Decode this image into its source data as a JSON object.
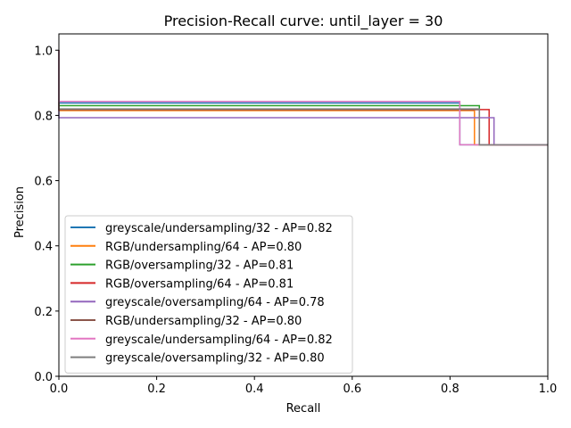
{
  "chart_data": {
    "type": "line",
    "title": "Precision-Recall curve: until_layer = 30",
    "xlabel": "Recall",
    "ylabel": "Precision",
    "xlim": [
      0.0,
      1.0
    ],
    "ylim": [
      0.0,
      1.05
    ],
    "xticks": [
      0.0,
      0.2,
      0.4,
      0.6,
      0.8,
      1.0
    ],
    "xtick_labels": [
      "0.0",
      "0.2",
      "0.4",
      "0.6",
      "0.8",
      "1.0"
    ],
    "yticks": [
      0.0,
      0.2,
      0.4,
      0.6,
      0.8,
      1.0
    ],
    "ytick_labels": [
      "0.0",
      "0.2",
      "0.4",
      "0.6",
      "0.8",
      "1.0"
    ],
    "grid": false,
    "legend_position": "lower-left",
    "series": [
      {
        "name": "greyscale/undersampling/32 - AP=0.82",
        "color": "#1f77b4",
        "points": [
          [
            0.0,
            1.0
          ],
          [
            0.0,
            0.838
          ],
          [
            0.82,
            0.838
          ],
          [
            0.82,
            0.71
          ],
          [
            1.0,
            0.71
          ]
        ]
      },
      {
        "name": "RGB/undersampling/64 - AP=0.80",
        "color": "#ff7f0e",
        "points": [
          [
            0.0,
            1.0
          ],
          [
            0.0,
            0.815
          ],
          [
            0.85,
            0.815
          ],
          [
            0.85,
            0.71
          ],
          [
            1.0,
            0.71
          ]
        ]
      },
      {
        "name": "RGB/oversampling/32 - AP=0.81",
        "color": "#2ca02c",
        "points": [
          [
            0.0,
            1.0
          ],
          [
            0.0,
            0.83
          ],
          [
            0.86,
            0.83
          ],
          [
            0.86,
            0.71
          ],
          [
            1.0,
            0.71
          ]
        ]
      },
      {
        "name": "RGB/oversampling/64 - AP=0.81",
        "color": "#d62728",
        "points": [
          [
            0.0,
            1.0
          ],
          [
            0.0,
            0.818
          ],
          [
            0.88,
            0.818
          ],
          [
            0.88,
            0.71
          ],
          [
            1.0,
            0.71
          ]
        ]
      },
      {
        "name": "greyscale/oversampling/64 - AP=0.78",
        "color": "#9467bd",
        "points": [
          [
            0.0,
            1.0
          ],
          [
            0.0,
            0.793
          ],
          [
            0.89,
            0.793
          ],
          [
            0.89,
            0.71
          ],
          [
            1.0,
            0.71
          ]
        ]
      },
      {
        "name": "RGB/undersampling/32 - AP=0.80",
        "color": "#8c564b",
        "points": [
          [
            0.0,
            1.0
          ],
          [
            0.0,
            0.818
          ],
          [
            0.86,
            0.818
          ],
          [
            0.86,
            0.71
          ],
          [
            1.0,
            0.71
          ]
        ]
      },
      {
        "name": "greyscale/undersampling/64 - AP=0.82",
        "color": "#e377c2",
        "points": [
          [
            0.0,
            1.0
          ],
          [
            0.0,
            0.843
          ],
          [
            0.82,
            0.843
          ],
          [
            0.82,
            0.71
          ],
          [
            1.0,
            0.71
          ]
        ]
      },
      {
        "name": "greyscale/oversampling/32 - AP=0.80",
        "color": "#7f7f7f",
        "points": [
          [
            0.0,
            1.0
          ],
          [
            0.0,
            0.82
          ],
          [
            0.86,
            0.82
          ],
          [
            0.86,
            0.71
          ],
          [
            1.0,
            0.71
          ]
        ]
      }
    ]
  }
}
